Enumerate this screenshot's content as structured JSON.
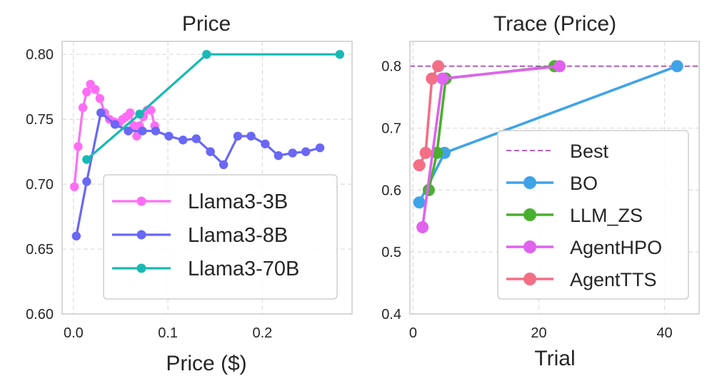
{
  "chart_data": [
    {
      "type": "line",
      "title": "Price",
      "xlabel": "Price ($)",
      "ylabel": "",
      "xlim": [
        -0.012,
        0.295
      ],
      "ylim": [
        0.6,
        0.81
      ],
      "xticks": [
        0.0,
        0.1,
        0.2
      ],
      "xtick_labels": [
        "0.0",
        "0.1",
        "0.2"
      ],
      "yticks": [
        0.6,
        0.65,
        0.7,
        0.75,
        0.8
      ],
      "ytick_labels": [
        "0.60",
        "0.65",
        "0.70",
        "0.75",
        "0.80"
      ],
      "grid": true,
      "legend_position": "lower-right",
      "series": [
        {
          "name": "Llama3-3B",
          "color": "#ff6df5",
          "points": [
            [
              0.001,
              0.698
            ],
            [
              0.005,
              0.729
            ],
            [
              0.01,
              0.759
            ],
            [
              0.014,
              0.771
            ],
            [
              0.018,
              0.777
            ],
            [
              0.023,
              0.773
            ],
            [
              0.028,
              0.766
            ],
            [
              0.033,
              0.755
            ],
            [
              0.038,
              0.75
            ],
            [
              0.043,
              0.748
            ],
            [
              0.048,
              0.747
            ],
            [
              0.052,
              0.75
            ],
            [
              0.056,
              0.752
            ],
            [
              0.06,
              0.755
            ],
            [
              0.064,
              0.745
            ],
            [
              0.067,
              0.737
            ],
            [
              0.07,
              0.745
            ],
            [
              0.074,
              0.752
            ],
            [
              0.078,
              0.757
            ],
            [
              0.082,
              0.757
            ],
            [
              0.086,
              0.745
            ]
          ]
        },
        {
          "name": "Llama3-8B",
          "color": "#6a67f6",
          "points": [
            [
              0.003,
              0.66
            ],
            [
              0.014,
              0.702
            ],
            [
              0.029,
              0.755
            ],
            [
              0.044,
              0.746
            ],
            [
              0.058,
              0.741
            ],
            [
              0.073,
              0.741
            ],
            [
              0.087,
              0.741
            ],
            [
              0.101,
              0.737
            ],
            [
              0.116,
              0.734
            ],
            [
              0.13,
              0.735
            ],
            [
              0.145,
              0.725
            ],
            [
              0.159,
              0.715
            ],
            [
              0.174,
              0.737
            ],
            [
              0.188,
              0.737
            ],
            [
              0.203,
              0.731
            ],
            [
              0.217,
              0.722
            ],
            [
              0.232,
              0.724
            ],
            [
              0.246,
              0.725
            ],
            [
              0.261,
              0.728
            ]
          ]
        },
        {
          "name": "Llama3-70B",
          "color": "#18b9b4",
          "points": [
            [
              0.014,
              0.719
            ],
            [
              0.07,
              0.754
            ],
            [
              0.141,
              0.8
            ],
            [
              0.282,
              0.8
            ]
          ]
        }
      ]
    },
    {
      "type": "line",
      "title": "Trace (Price)",
      "xlabel": "Trial",
      "ylabel": "",
      "xlim": [
        -0.5,
        45.5
      ],
      "ylim": [
        0.4,
        0.84
      ],
      "xticks": [
        0,
        20,
        40
      ],
      "xtick_labels": [
        "0",
        "20",
        "40"
      ],
      "yticks": [
        0.4,
        0.5,
        0.6,
        0.7,
        0.8
      ],
      "ytick_labels": [
        "0.4",
        "0.5",
        "0.6",
        "0.7",
        "0.8"
      ],
      "grid": true,
      "legend_position": "lower-right",
      "best_line": {
        "name": "Best",
        "value": 0.8,
        "color": "#a94bb4"
      },
      "series": [
        {
          "name": "BO",
          "color": "#3fa3e7",
          "points": [
            [
              1,
              0.58
            ],
            [
              5,
              0.66
            ],
            [
              42,
              0.8
            ]
          ]
        },
        {
          "name": "LLM_ZS",
          "color": "#49b02f",
          "points": [
            [
              2.5,
              0.6
            ],
            [
              3.8,
              0.66
            ],
            [
              5.2,
              0.78
            ],
            [
              22.5,
              0.8
            ]
          ]
        },
        {
          "name": "AgentHPO",
          "color": "#e062ee",
          "points": [
            [
              1.5,
              0.54
            ],
            [
              4.7,
              0.78
            ],
            [
              23.3,
              0.8
            ]
          ]
        },
        {
          "name": "AgentTTS",
          "color": "#f36f86",
          "points": [
            [
              1,
              0.64
            ],
            [
              2,
              0.66
            ],
            [
              3,
              0.78
            ],
            [
              4,
              0.8
            ]
          ]
        }
      ]
    }
  ]
}
